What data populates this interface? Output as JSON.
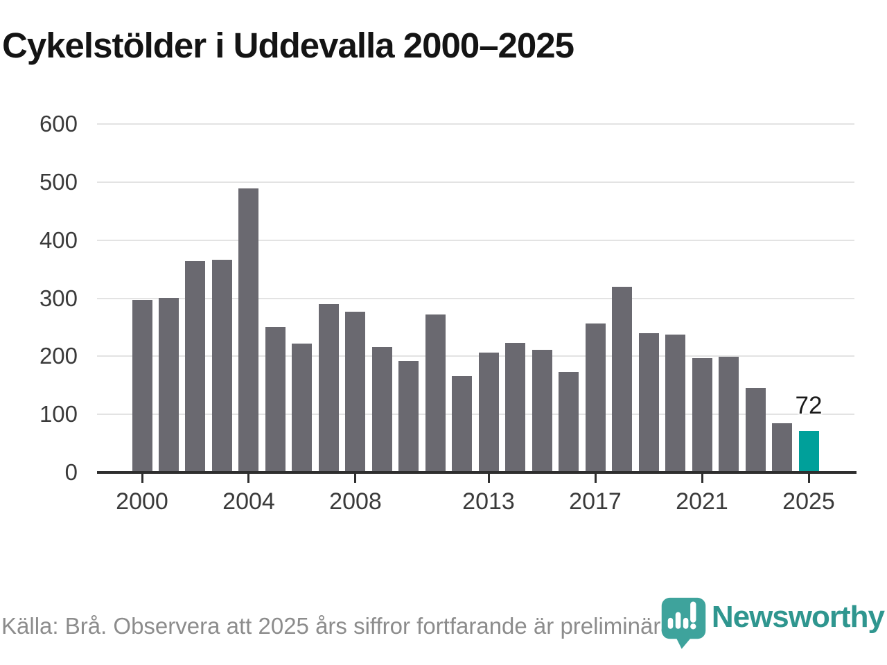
{
  "title": "Cykelstölder i Uddevalla 2000–2025",
  "footer": {
    "source_text": "Källa: Brå. Observera att 2025 års siffror fortfarande är preliminära.",
    "brand_name": "Newsworthy"
  },
  "colors": {
    "bar": "#6a6970",
    "highlight_bar": "#00a09a",
    "grid": "#e3e3e3",
    "axis": "#2e2e2e",
    "title_text": "#141414",
    "tick_label": "#3a3a3a",
    "footer_text": "#8c8c8c",
    "brand_teal": "#2f968f",
    "pin_teal": "#3ea39c"
  },
  "chart_data": {
    "type": "bar",
    "title": "Cykelstölder i Uddevalla 2000–2025",
    "xlabel": "",
    "ylabel": "",
    "categories": [
      2000,
      2001,
      2002,
      2003,
      2004,
      2005,
      2006,
      2007,
      2008,
      2009,
      2010,
      2011,
      2012,
      2013,
      2014,
      2015,
      2016,
      2017,
      2018,
      2019,
      2020,
      2021,
      2022,
      2023,
      2024,
      2025
    ],
    "values": [
      297,
      300,
      364,
      366,
      489,
      251,
      222,
      290,
      277,
      216,
      192,
      272,
      166,
      206,
      223,
      211,
      173,
      257,
      320,
      240,
      237,
      197,
      199,
      146,
      85,
      72
    ],
    "highlight_category": 2025,
    "highlight_value_label": "72",
    "ylim": [
      0,
      600
    ],
    "yticks": [
      "0",
      "100",
      "200",
      "300",
      "400",
      "500",
      "600"
    ],
    "xtick_years": [
      "2000",
      "2004",
      "2008",
      "2013",
      "2017",
      "2021",
      "2025"
    ],
    "grid": "horizontal",
    "legend": "none"
  }
}
